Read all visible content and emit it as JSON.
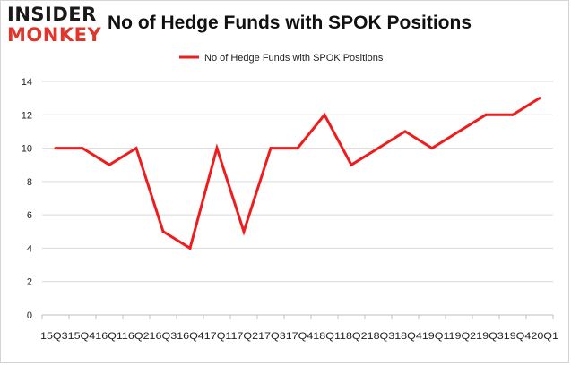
{
  "logo": {
    "line1": "INSIDER",
    "line2": "MONKEY"
  },
  "chart_data": {
    "type": "line",
    "title": "No of Hedge Funds with SPOK Positions",
    "xlabel": "",
    "ylabel": "",
    "categories": [
      "2015Q3",
      "2015Q4",
      "2016Q1",
      "2016Q2",
      "2016Q3",
      "2016Q4",
      "2017Q1",
      "2017Q2",
      "2017Q3",
      "2017Q4",
      "2018Q1",
      "2018Q2",
      "2018Q3",
      "2018Q4",
      "2019Q1",
      "2019Q2",
      "2019Q3",
      "2019Q4",
      "2020Q1"
    ],
    "tick_label_text": "15Q315Q416Q116Q216Q316Q417Q117Q217Q317Q418Q118Q218Q318Q419Q119Q219Q319Q420Q1",
    "series": [
      {
        "name": "No of Hedge Funds with SPOK Positions",
        "values": [
          10,
          10,
          9,
          10,
          5,
          4,
          10,
          5,
          10,
          10,
          12,
          9,
          10,
          11,
          10,
          11,
          12,
          12,
          13
        ]
      }
    ],
    "ylim": [
      0,
      14
    ],
    "yticks": [
      0,
      2,
      4,
      6,
      8,
      10,
      12,
      14
    ],
    "grid": true,
    "legend_position": "top-center",
    "colors": {
      "line": "#ee1c1c",
      "grid": "#d9d9d9",
      "axis": "#bfbfbf"
    }
  }
}
